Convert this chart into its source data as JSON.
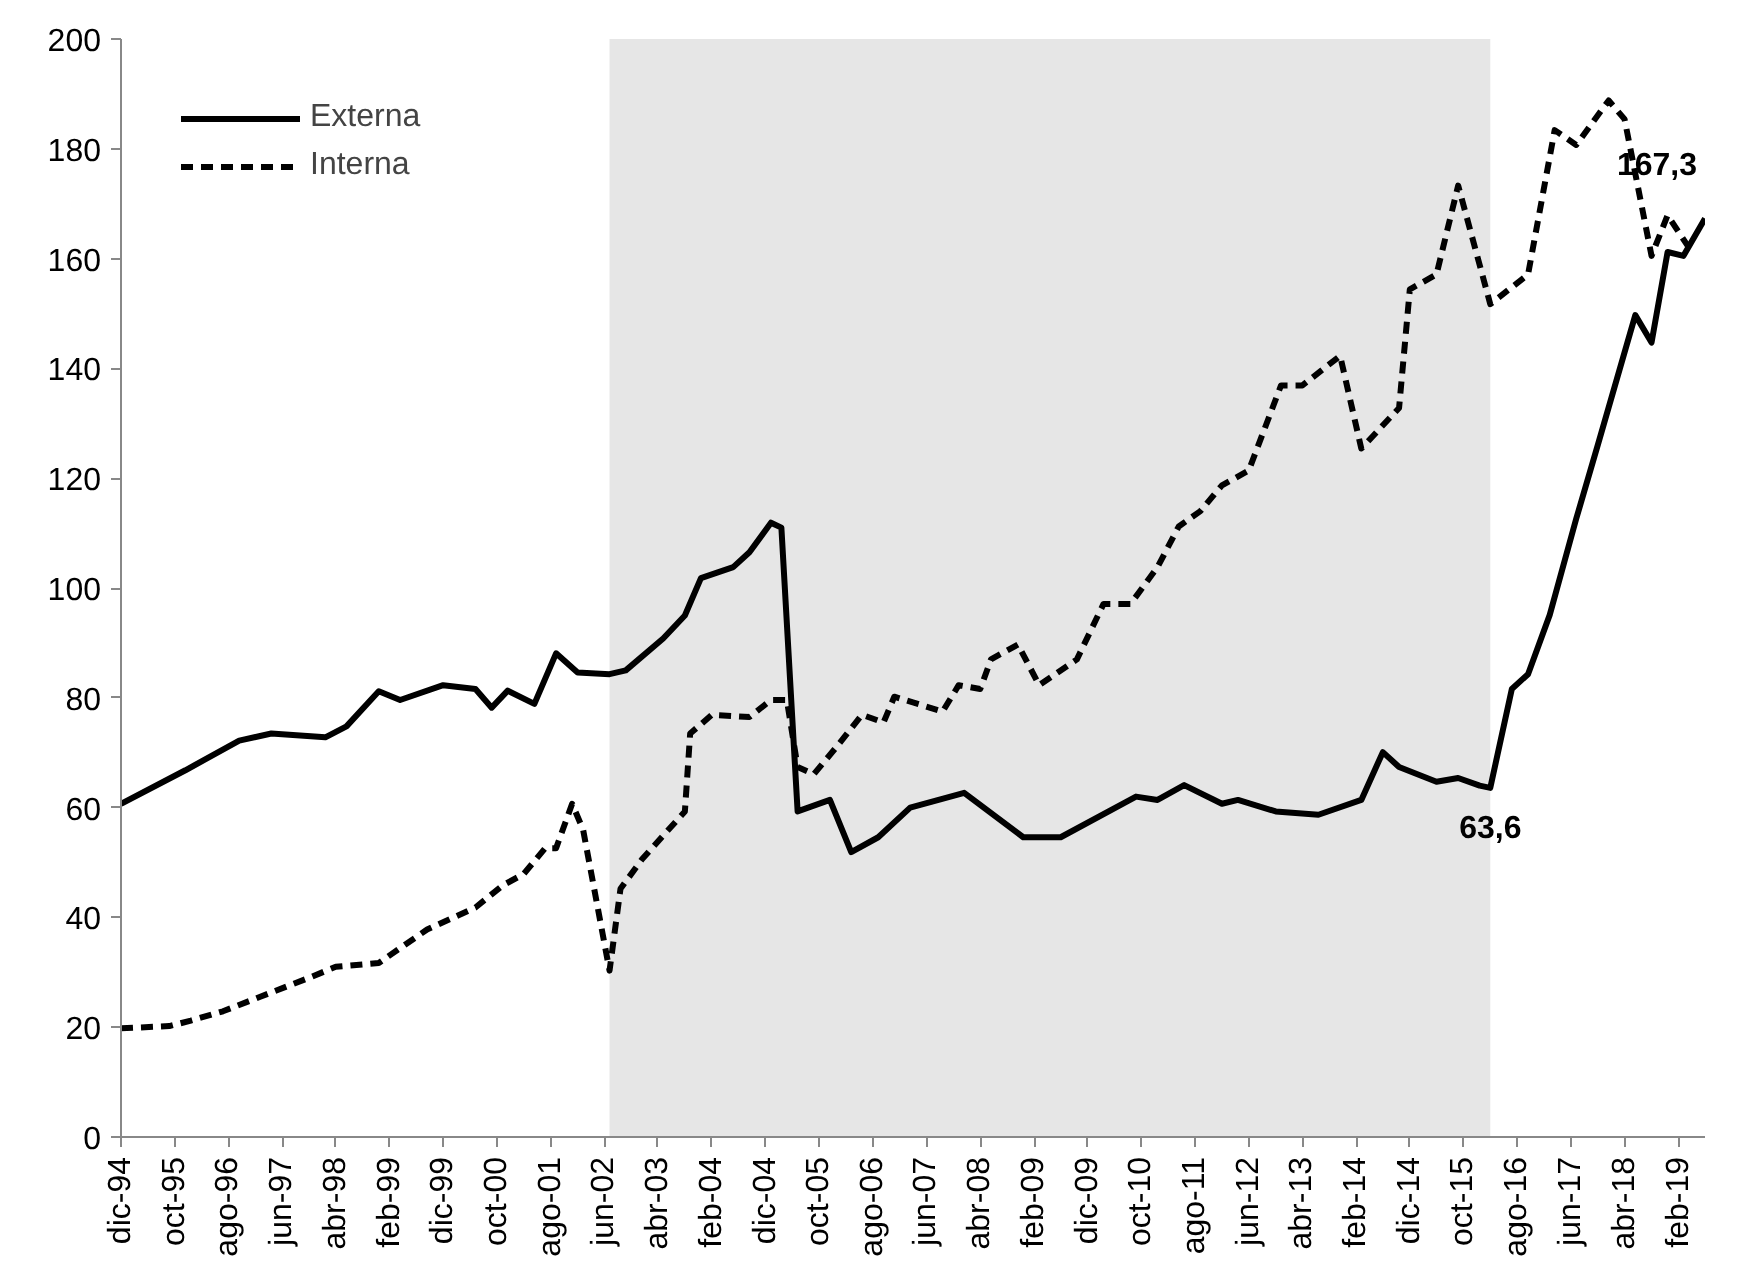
{
  "chart_data": {
    "type": "line",
    "xlim": [
      "1994-12",
      "2019-07"
    ],
    "ylim": [
      0,
      200
    ],
    "yticks": [
      0,
      20,
      40,
      60,
      80,
      100,
      120,
      140,
      160,
      180,
      200
    ],
    "xticks": [
      {
        "value": "1994-12",
        "label": "dic-94"
      },
      {
        "value": "1995-10",
        "label": "oct-95"
      },
      {
        "value": "1996-08",
        "label": "ago-96"
      },
      {
        "value": "1997-06",
        "label": "jun-97"
      },
      {
        "value": "1998-04",
        "label": "abr-98"
      },
      {
        "value": "1999-02",
        "label": "feb-99"
      },
      {
        "value": "1999-12",
        "label": "dic-99"
      },
      {
        "value": "2000-10",
        "label": "oct-00"
      },
      {
        "value": "2001-08",
        "label": "ago-01"
      },
      {
        "value": "2002-06",
        "label": "jun-02"
      },
      {
        "value": "2003-04",
        "label": "abr-03"
      },
      {
        "value": "2004-02",
        "label": "feb-04"
      },
      {
        "value": "2004-12",
        "label": "dic-04"
      },
      {
        "value": "2005-10",
        "label": "oct-05"
      },
      {
        "value": "2006-08",
        "label": "ago-06"
      },
      {
        "value": "2007-06",
        "label": "jun-07"
      },
      {
        "value": "2008-04",
        "label": "abr-08"
      },
      {
        "value": "2009-02",
        "label": "feb-09"
      },
      {
        "value": "2009-12",
        "label": "dic-09"
      },
      {
        "value": "2010-10",
        "label": "oct-10"
      },
      {
        "value": "2011-08",
        "label": "ago-11"
      },
      {
        "value": "2012-06",
        "label": "jun-12"
      },
      {
        "value": "2013-04",
        "label": "abr-13"
      },
      {
        "value": "2014-02",
        "label": "feb-14"
      },
      {
        "value": "2014-12",
        "label": "dic-14"
      },
      {
        "value": "2015-10",
        "label": "oct-15"
      },
      {
        "value": "2016-08",
        "label": "ago-16"
      },
      {
        "value": "2017-06",
        "label": "jun-17"
      },
      {
        "value": "2018-04",
        "label": "abr-18"
      },
      {
        "value": "2019-02",
        "label": "feb-19"
      }
    ],
    "grid": false,
    "legend": "top left",
    "series": [
      {
        "name": "Externa",
        "color": "#000000",
        "line_style": "solid",
        "x": [
          "1994-12",
          "1995-12",
          "1996-10",
          "1997-04",
          "1998-02",
          "1998-06",
          "1998-12",
          "1999-04",
          "1999-12",
          "2000-06",
          "2000-09",
          "2000-12",
          "2001-05",
          "2001-09",
          "2002-01",
          "2002-07",
          "2002-10",
          "2003-05",
          "2003-09",
          "2003-12",
          "2004-06",
          "2004-09",
          "2005-01",
          "2005-03",
          "2005-06",
          "2005-12",
          "2006-04",
          "2006-09",
          "2007-03",
          "2008-01",
          "2008-12",
          "2009-07",
          "2010-09",
          "2011-01",
          "2011-06",
          "2012-01",
          "2012-04",
          "2012-11",
          "2013-07",
          "2014-03",
          "2014-07",
          "2014-10",
          "2015-05",
          "2015-09",
          "2016-01",
          "2016-03",
          "2016-07",
          "2016-10",
          "2017-02",
          "2017-07",
          "2017-11",
          "2018-06",
          "2018-09",
          "2018-12",
          "2019-03",
          "2019-07"
        ],
        "values": [
          60.7,
          66.8,
          72.2,
          73.5,
          72.8,
          74.8,
          81.2,
          79.6,
          82.3,
          81.6,
          78.2,
          81.3,
          78.9,
          88.1,
          84.6,
          84.3,
          85,
          90.8,
          95,
          101.8,
          103.8,
          106.5,
          111.9,
          111,
          59.3,
          61.4,
          51.9,
          54.6,
          60,
          62.7,
          54.6,
          54.6,
          62,
          61.4,
          64.1,
          60.7,
          61.4,
          59.3,
          58.7,
          61.4,
          70.1,
          67.4,
          64.7,
          65.4,
          64,
          63.6,
          81.6,
          84.3,
          95.1,
          112.6,
          126.1,
          149.7,
          144.7,
          161.2,
          160.5,
          167.3
        ]
      },
      {
        "name": "Interna",
        "color": "#000000",
        "line_style": "dashed",
        "x": [
          "1994-12",
          "1995-09",
          "1996-01",
          "1996-07",
          "1997-02",
          "1997-11",
          "1998-04",
          "1998-12",
          "1999-04",
          "1999-09",
          "2000-06",
          "2000-11",
          "2001-03",
          "2001-07",
          "2001-09",
          "2001-12",
          "2002-02",
          "2002-07",
          "2002-09",
          "2003-01",
          "2003-06",
          "2003-09",
          "2003-10",
          "2004-02",
          "2004-09",
          "2005-01",
          "2005-04",
          "2005-06",
          "2005-09",
          "2006-01",
          "2006-06",
          "2006-10",
          "2006-12",
          "2007-09",
          "2007-12",
          "2008-04",
          "2008-06",
          "2008-11",
          "2009-03",
          "2009-10",
          "2010-03",
          "2010-08",
          "2011-01",
          "2011-05",
          "2011-09",
          "2012-01",
          "2012-06",
          "2012-12",
          "2013-04",
          "2013-11",
          "2014-03",
          "2014-10",
          "2014-12",
          "2015-05",
          "2015-09",
          "2016-03",
          "2016-10",
          "2017-03",
          "2017-07",
          "2018-01",
          "2018-04",
          "2018-09",
          "2018-12",
          "2019-04"
        ],
        "values": [
          19.8,
          20.2,
          21.2,
          22.9,
          25.6,
          29,
          31,
          31.7,
          34.4,
          37.8,
          41.8,
          45.8,
          47.9,
          52.6,
          52.6,
          60.7,
          56,
          30.3,
          45.2,
          50.6,
          56,
          59.3,
          73.5,
          76.9,
          76.5,
          79.6,
          79.6,
          67.4,
          66.1,
          70.8,
          76.9,
          75.5,
          80.2,
          77.5,
          82.3,
          81.6,
          87,
          89.7,
          82.3,
          87,
          97.1,
          97.1,
          103.8,
          111.2,
          114,
          118.7,
          121.4,
          136.9,
          136.9,
          142.3,
          125.4,
          132.8,
          154.4,
          157.1,
          173.3,
          151.7,
          157.1,
          183.4,
          180.7,
          188.8,
          185.4,
          160.5,
          167.9,
          162
        ]
      }
    ],
    "bands": [
      {
        "axis": "x",
        "from": "2002-07",
        "to": "2016-03",
        "color": "#e6e6e6"
      }
    ],
    "annotations": [
      {
        "text": "63,6",
        "x": "2016-03",
        "y": 63.6
      },
      {
        "text": "167,3",
        "x": "2019-07",
        "y": 167.3
      }
    ]
  }
}
